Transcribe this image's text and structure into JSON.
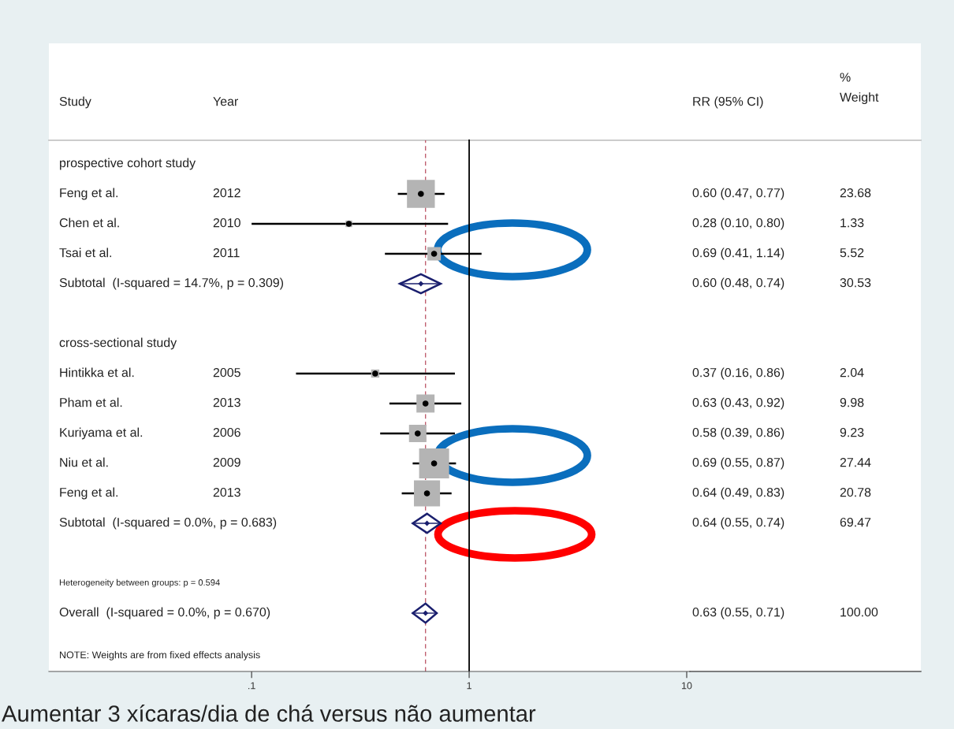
{
  "chart_data": {
    "type": "scatter",
    "orientation": "horizontal",
    "log": "x",
    "categories": [
      "prospective cohort study",
      "Feng et al.",
      "Chen et al.",
      "Tsai et al.",
      "Subtotal  (I-squared = 14.7%, p = 0.309)",
      null,
      "cross-sectional study",
      "Hintikka et al.",
      "Pham et al.",
      "Kuriyama et al.",
      "Niu et al.",
      "Feng et al.",
      "Subtotal  (I-squared = 0.0%, p = 0.683)",
      null,
      "Heterogeneity between groups: p = 0.594",
      "Overall  (I-squared = 0.0%, p = 0.670)"
    ],
    "series": [
      {
        "marker": "square",
        "colors": [
          null,
          "#b4b4b4",
          "#b4b4b4",
          "#b4b4b4",
          "#1a1f6e",
          null,
          null,
          "#b4b4b4",
          "#b4b4b4",
          "#b4b4b4",
          "#b4b4b4",
          "#b4b4b4",
          "#1a1f6e",
          null,
          null,
          "#1a1f6e"
        ],
        "values": [
          null,
          0.6,
          0.28,
          0.69,
          0.6,
          null,
          null,
          0.37,
          0.63,
          0.58,
          0.69,
          0.64,
          0.64,
          null,
          null,
          0.63
        ],
        "errors": [
          null,
          [
            0.47,
            0.77
          ],
          [
            0.1,
            0.8
          ],
          [
            0.41,
            1.14
          ],
          [
            0.48,
            0.74
          ],
          null,
          null,
          [
            0.16,
            0.86
          ],
          [
            0.43,
            0.92
          ],
          [
            0.39,
            0.86
          ],
          [
            0.55,
            0.87
          ],
          [
            0.49,
            0.83
          ],
          [
            0.55,
            0.74
          ],
          null,
          null,
          [
            0.55,
            0.71
          ]
        ],
        "sizes": [
          null,
          0.863,
          0.048,
          0.201,
          null,
          null,
          null,
          0.074,
          0.364,
          0.336,
          1,
          0.757,
          null,
          null,
          null,
          null
        ],
        "value_labels": [
          null,
          "0.60 (0.47, 0.77)",
          "0.28 (0.10, 0.80)",
          "0.69 (0.41, 1.14)",
          "0.60 (0.48, 0.74)",
          null,
          null,
          "0.37 (0.16, 0.86)",
          "0.63 (0.43, 0.92)",
          "0.58 (0.39, 0.86)",
          "0.69 (0.55, 0.87)",
          "0.64 (0.49, 0.83)",
          "0.64 (0.55, 0.74)",
          null,
          null,
          "0.63 (0.55, 0.71)"
        ]
      }
    ],
    "xlim": [
      0.0117,
      10.34
    ],
    "xticks": [
      {
        "value": 0.1,
        "label": ".1"
      },
      1,
      {
        "value": 10,
        "label": "10"
      }
    ],
    "tick_labels": "x",
    "ref_lines": [
      {
        "axis": "x",
        "value": 1,
        "color": "#000000",
        "line_style": "solid"
      },
      {
        "axis": "x",
        "value": 0.63,
        "color": "#c06070",
        "line_style": "dashed"
      }
    ],
    "annotations": [
      "Study",
      "Year",
      "RR (95% CI)",
      "%\nWeight",
      "NOTE: Weights are from fixed effects analysis",
      "Aumentar 3 xícaras/dia de chá versus não aumentar",
      "2012",
      "2010",
      "2011",
      "2005",
      "2013",
      "2006",
      "2009",
      "2013",
      "23.68",
      "1.33",
      "5.52",
      "30.53",
      "2.04",
      "9.98",
      "9.23",
      "27.44",
      "20.78",
      "69.47",
      "100.00"
    ]
  }
}
